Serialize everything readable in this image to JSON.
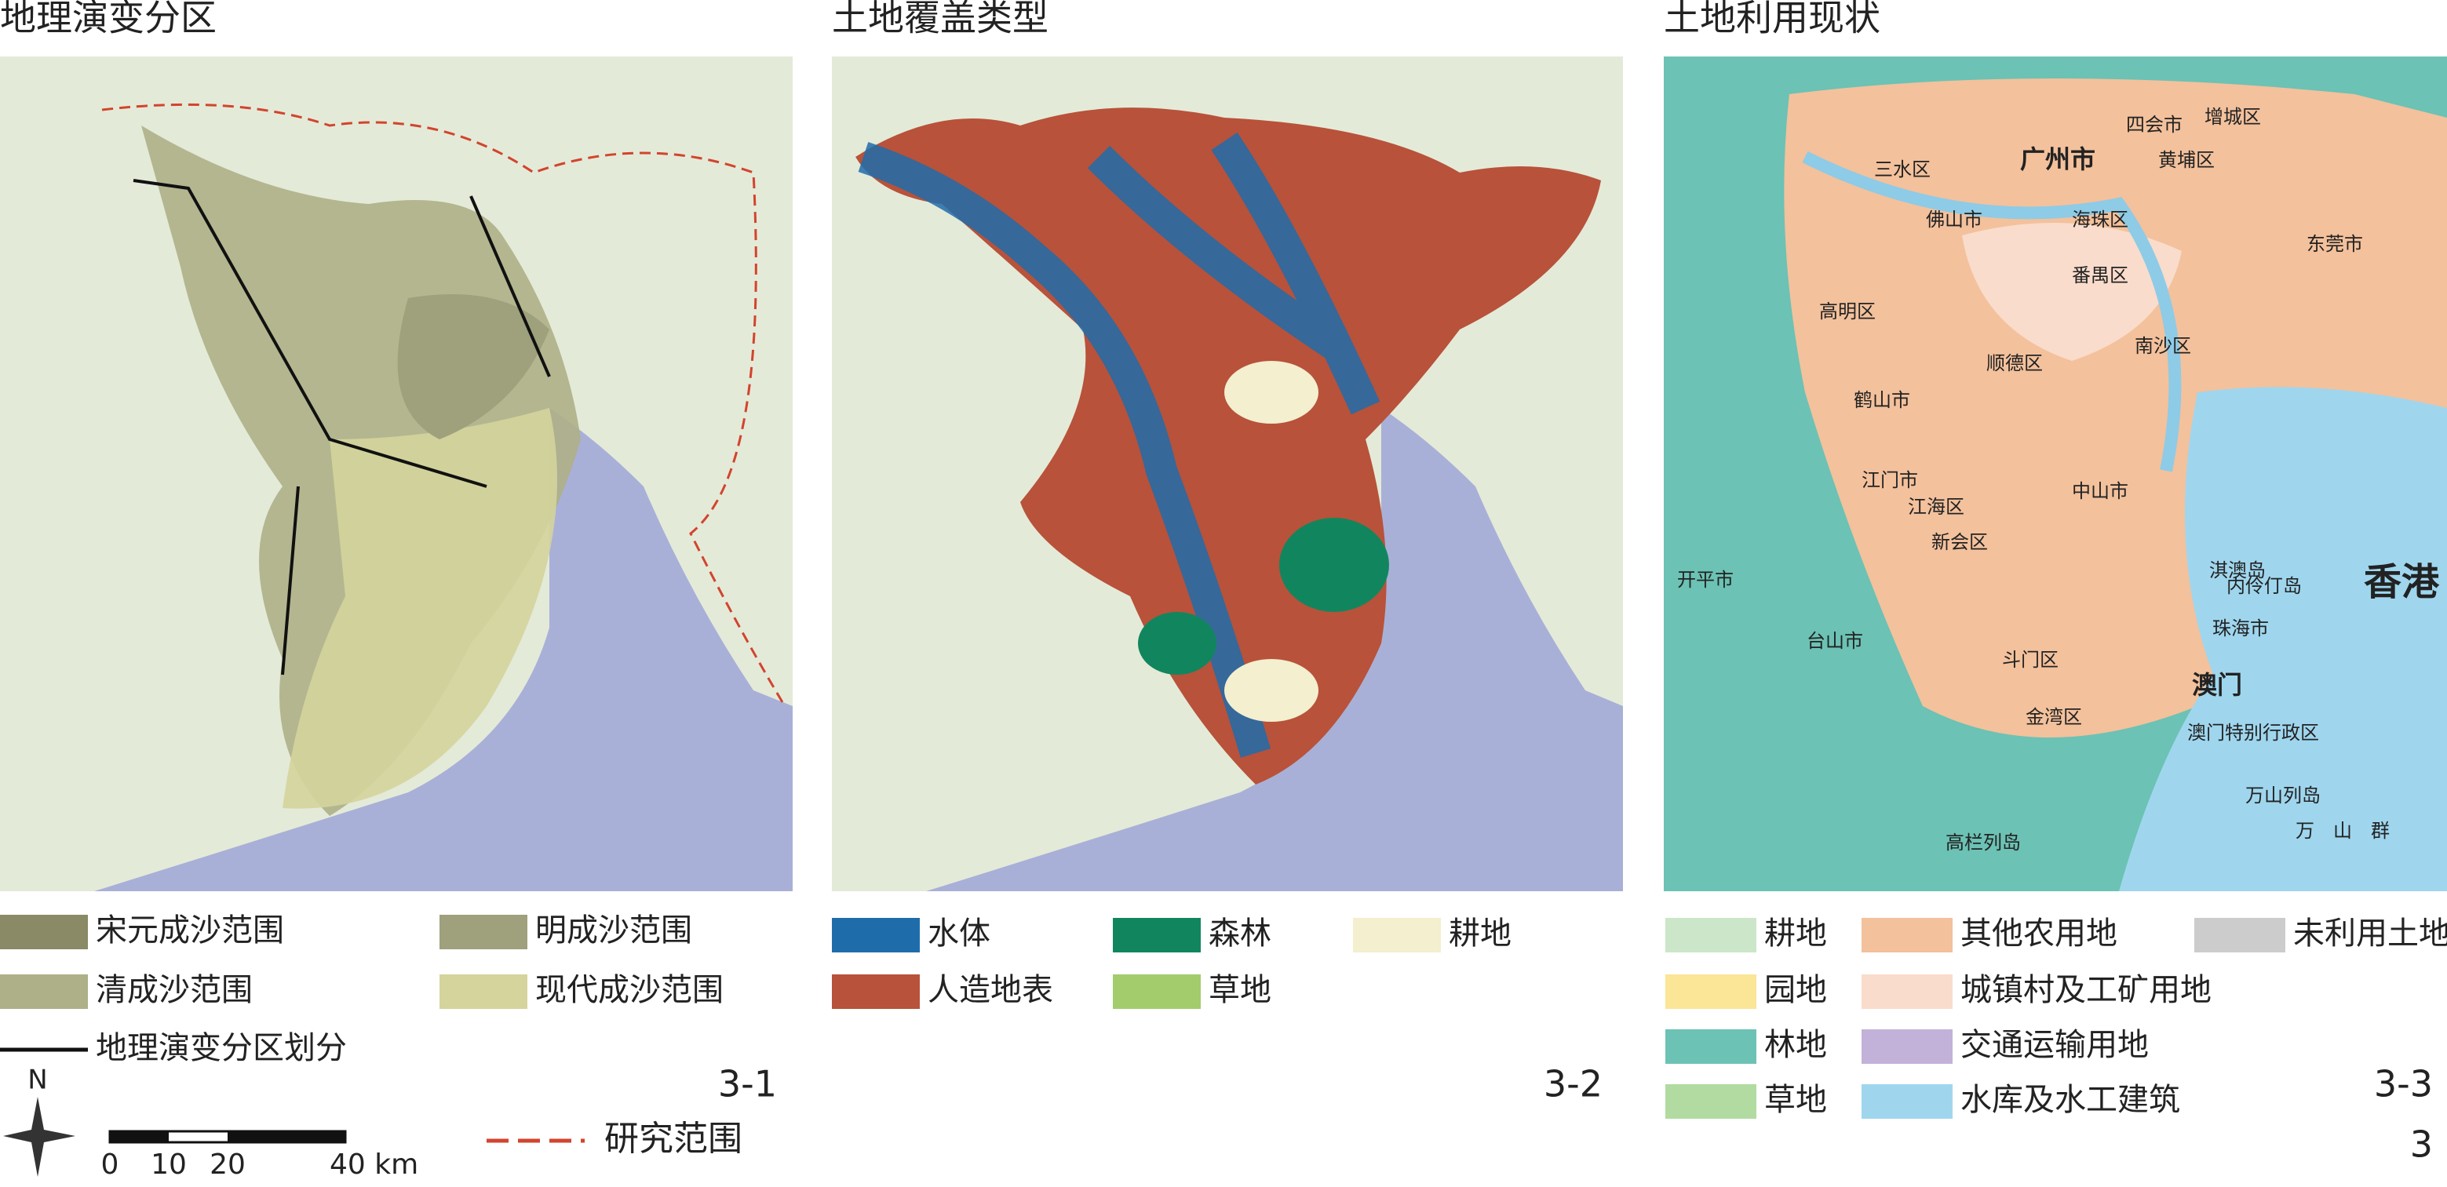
{
  "panels": [
    {
      "title": "地理演变分区",
      "figure_label": "3-1",
      "legend": [
        {
          "label": "宋元成沙范围",
          "color": "#8a8a66"
        },
        {
          "label": "明成沙范围",
          "color": "#9fa07c"
        },
        {
          "label": "清成沙范围",
          "color": "#aeb088"
        },
        {
          "label": "现代成沙范围",
          "color": "#d4d49c"
        },
        {
          "label": "地理演变分区划分",
          "color": "#111111",
          "symbol": "line"
        }
      ]
    },
    {
      "title": "土地覆盖类型",
      "figure_label": "3-2",
      "legend": [
        {
          "label": "水体",
          "color": "#1f6cab"
        },
        {
          "label": "森林",
          "color": "#11865e"
        },
        {
          "label": "耕地",
          "color": "#f3efcf"
        },
        {
          "label": "人造地表",
          "color": "#b8523a"
        },
        {
          "label": "草地",
          "color": "#a3cc6c"
        }
      ]
    },
    {
      "title": "土地利用现状",
      "figure_label": "3-3",
      "legend": [
        {
          "label": "耕地",
          "color": "#cbe6c8"
        },
        {
          "label": "园地",
          "color": "#fbe596"
        },
        {
          "label": "林地",
          "color": "#6cc2b4"
        },
        {
          "label": "草地",
          "color": "#b1dba0"
        },
        {
          "label": "其他农用地",
          "color": "#f3c19c"
        },
        {
          "label": "城镇村及工矿用地",
          "color": "#f9dccb"
        },
        {
          "label": "交通运输用地",
          "color": "#c2b2d9"
        },
        {
          "label": "水库及水工建筑",
          "color": "#9fd6ee"
        },
        {
          "label": "未利用土地",
          "color": "#cccccc"
        }
      ]
    }
  ],
  "north": "N",
  "scale_bar": [
    "0",
    "10",
    "20",
    "40 km"
  ],
  "boundary_legend": "研究范围",
  "map_labels": [
    "四会市",
    "增城区",
    "广州市",
    "黄埔区",
    "三水区",
    "佛山市",
    "海珠区",
    "东莞市",
    "番禺区",
    "高明区",
    "南沙区",
    "顺德区",
    "鹤山市",
    "江门市",
    "中山市",
    "江海区",
    "新会区",
    "开平市",
    "淇澳岛",
    "内伶仃岛",
    "珠海市",
    "台山市",
    "斗门区",
    "澳门",
    "金湾区",
    "澳门特别行政区",
    "万山列岛",
    "高栏列岛",
    "万　山　群",
    "香港"
  ],
  "page_number": "3"
}
